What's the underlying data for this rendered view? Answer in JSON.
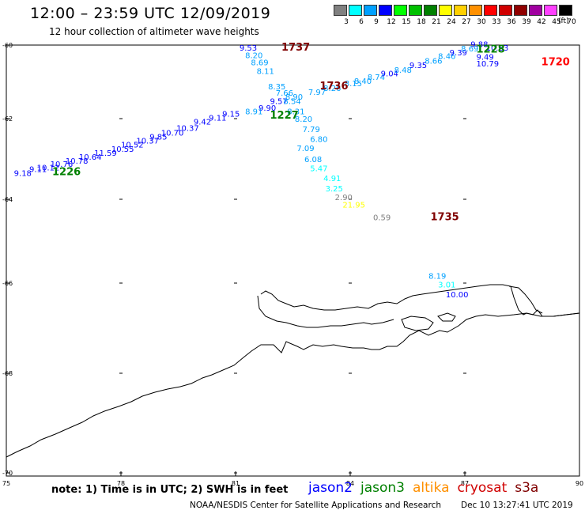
{
  "header": {
    "title": "12:00 – 23:59 UTC 12/09/2019",
    "subtitle": "12 hour collection of altimeter wave heights"
  },
  "legend": {
    "unit_label": "(ft)",
    "bins": [
      {
        "label": "3",
        "color": "#808080"
      },
      {
        "label": "6",
        "color": "#00ffff"
      },
      {
        "label": "9",
        "color": "#00a0ff"
      },
      {
        "label": "12",
        "color": "#0000ff"
      },
      {
        "label": "15",
        "color": "#00ff00"
      },
      {
        "label": "18",
        "color": "#00c000"
      },
      {
        "label": "21",
        "color": "#008000"
      },
      {
        "label": "24",
        "color": "#ffff00"
      },
      {
        "label": "27",
        "color": "#ffd000"
      },
      {
        "label": "30",
        "color": "#ff9000"
      },
      {
        "label": "33",
        "color": "#ff0000"
      },
      {
        "label": "36",
        "color": "#d00000"
      },
      {
        "label": "39",
        "color": "#900000"
      },
      {
        "label": "42",
        "color": "#a000a0"
      },
      {
        "label": "45",
        "color": "#ff40ff"
      },
      {
        "label": "70",
        "color": "#000000"
      }
    ]
  },
  "axes": {
    "lon_labels": [
      "75",
      "78",
      "81",
      "84",
      "87",
      "90"
    ],
    "lat_labels": [
      "-60",
      "-62",
      "-64",
      "-66",
      "-68",
      "-70"
    ]
  },
  "pass_times": [
    {
      "text": "1737",
      "color": "#800000",
      "lon": 82.2,
      "lat": -60.15
    },
    {
      "text": "1736",
      "color": "#800000",
      "lon": 83.2,
      "lat": -61.2
    },
    {
      "text": "1735",
      "color": "#800000",
      "lon": 86.1,
      "lat": -64.5
    },
    {
      "text": "1720",
      "color": "#ff0000",
      "lon": 89.0,
      "lat": -60.55
    },
    {
      "text": "1227",
      "color": "#008000",
      "lon": 81.9,
      "lat": -62.0
    },
    {
      "text": "1226",
      "color": "#008000",
      "lon": 76.2,
      "lat": -63.4
    },
    {
      "text": "1228",
      "color": "#008000",
      "lon": 87.3,
      "lat": -60.2
    }
  ],
  "wave_heights": [
    {
      "text": "9.53",
      "color": "#0000ff",
      "lon": 81.1,
      "lat": -60.15
    },
    {
      "text": "8.20",
      "color": "#00a0ff",
      "lon": 81.25,
      "lat": -60.35
    },
    {
      "text": "8.69",
      "color": "#00a0ff",
      "lon": 81.4,
      "lat": -60.55
    },
    {
      "text": "8.11",
      "color": "#00a0ff",
      "lon": 81.55,
      "lat": -60.78
    },
    {
      "text": "8.35",
      "color": "#00a0ff",
      "lon": 81.85,
      "lat": -61.2
    },
    {
      "text": "7.66",
      "color": "#00a0ff",
      "lon": 82.05,
      "lat": -61.38
    },
    {
      "text": "8.90",
      "color": "#00a0ff",
      "lon": 82.3,
      "lat": -61.48
    },
    {
      "text": "9.57",
      "color": "#0000ff",
      "lon": 81.9,
      "lat": -61.6
    },
    {
      "text": "8.54",
      "color": "#00a0ff",
      "lon": 82.25,
      "lat": -61.6
    },
    {
      "text": "9.90",
      "color": "#0000ff",
      "lon": 81.6,
      "lat": -61.78
    },
    {
      "text": "8.91",
      "color": "#00a0ff",
      "lon": 81.25,
      "lat": -61.88
    },
    {
      "text": "8.31",
      "color": "#00a0ff",
      "lon": 82.35,
      "lat": -61.88
    },
    {
      "text": "8.20",
      "color": "#00a0ff",
      "lon": 82.55,
      "lat": -62.08
    },
    {
      "text": "7.79",
      "color": "#00a0ff",
      "lon": 82.75,
      "lat": -62.33
    },
    {
      "text": "6.80",
      "color": "#00a0ff",
      "lon": 82.95,
      "lat": -62.58
    },
    {
      "text": "7.09",
      "color": "#00a0ff",
      "lon": 82.6,
      "lat": -62.8
    },
    {
      "text": "6.08",
      "color": "#00a0ff",
      "lon": 82.8,
      "lat": -63.08
    },
    {
      "text": "5.47",
      "color": "#00ffff",
      "lon": 82.95,
      "lat": -63.3
    },
    {
      "text": "4.91",
      "color": "#00ffff",
      "lon": 83.3,
      "lat": -63.55
    },
    {
      "text": "3.25",
      "color": "#00ffff",
      "lon": 83.35,
      "lat": -63.8
    },
    {
      "text": "2.90",
      "color": "#808080",
      "lon": 83.6,
      "lat": -64.02
    },
    {
      "text": "21.95",
      "color": "#ffff00",
      "lon": 83.8,
      "lat": -64.2
    },
    {
      "text": "0.59",
      "color": "#808080",
      "lon": 84.6,
      "lat": -64.5
    },
    {
      "text": "7.97",
      "color": "#00a0ff",
      "lon": 82.9,
      "lat": -61.35
    },
    {
      "text": "8.26",
      "color": "#00a0ff",
      "lon": 83.3,
      "lat": -61.25
    },
    {
      "text": "8.15",
      "color": "#00a0ff",
      "lon": 83.85,
      "lat": -61.12
    },
    {
      "text": "8.40",
      "color": "#00a0ff",
      "lon": 84.1,
      "lat": -61.05
    },
    {
      "text": "8.74",
      "color": "#00a0ff",
      "lon": 84.45,
      "lat": -60.95
    },
    {
      "text": "9.04",
      "color": "#0000ff",
      "lon": 84.8,
      "lat": -60.85
    },
    {
      "text": "8.48",
      "color": "#00a0ff",
      "lon": 85.15,
      "lat": -60.75
    },
    {
      "text": "9.35",
      "color": "#0000ff",
      "lon": 85.55,
      "lat": -60.62
    },
    {
      "text": "8.66",
      "color": "#00a0ff",
      "lon": 85.95,
      "lat": -60.5
    },
    {
      "text": "8.46",
      "color": "#00a0ff",
      "lon": 86.3,
      "lat": -60.38
    },
    {
      "text": "9.39",
      "color": "#0000ff",
      "lon": 86.6,
      "lat": -60.28
    },
    {
      "text": "8.69",
      "color": "#00a0ff",
      "lon": 86.9,
      "lat": -60.17
    },
    {
      "text": "9.88",
      "color": "#0000ff",
      "lon": 87.15,
      "lat": -60.05
    },
    {
      "text": "10.63",
      "color": "#0000ff",
      "lon": 87.55,
      "lat": -60.15
    },
    {
      "text": "9.49",
      "color": "#0000ff",
      "lon": 87.3,
      "lat": -60.4
    },
    {
      "text": "10.79",
      "color": "#0000ff",
      "lon": 87.3,
      "lat": -60.58
    },
    {
      "text": "9.15",
      "color": "#0000ff",
      "lon": 80.65,
      "lat": -61.95
    },
    {
      "text": "9.11",
      "color": "#0000ff",
      "lon": 80.3,
      "lat": -62.05
    },
    {
      "text": "9.42",
      "color": "#0000ff",
      "lon": 79.9,
      "lat": -62.15
    },
    {
      "text": "10.37",
      "color": "#0000ff",
      "lon": 79.45,
      "lat": -62.3
    },
    {
      "text": "10.70",
      "color": "#0000ff",
      "lon": 79.05,
      "lat": -62.42
    },
    {
      "text": "9.85",
      "color": "#0000ff",
      "lon": 78.75,
      "lat": -62.52
    },
    {
      "text": "10.37",
      "color": "#0000ff",
      "lon": 78.4,
      "lat": -62.62
    },
    {
      "text": "10.52",
      "color": "#0000ff",
      "lon": 78.0,
      "lat": -62.72
    },
    {
      "text": "10.55",
      "color": "#0000ff",
      "lon": 77.75,
      "lat": -62.82
    },
    {
      "text": "11.59",
      "color": "#0000ff",
      "lon": 77.3,
      "lat": -62.92
    },
    {
      "text": "10.64",
      "color": "#0000ff",
      "lon": 76.9,
      "lat": -63.02
    },
    {
      "text": "10.78",
      "color": "#0000ff",
      "lon": 76.55,
      "lat": -63.12
    },
    {
      "text": "10.76",
      "color": "#0000ff",
      "lon": 76.15,
      "lat": -63.2
    },
    {
      "text": "10.12",
      "color": "#0000ff",
      "lon": 75.8,
      "lat": -63.28
    },
    {
      "text": "9.11",
      "color": "#0000ff",
      "lon": 75.6,
      "lat": -63.32
    },
    {
      "text": "9.18",
      "color": "#0000ff",
      "lon": 75.2,
      "lat": -63.42
    },
    {
      "text": "8.19",
      "color": "#00a0ff",
      "lon": 86.05,
      "lat": -65.9
    },
    {
      "text": "3.01",
      "color": "#00ffff",
      "lon": 86.3,
      "lat": -66.1
    },
    {
      "text": "10.00",
      "color": "#0000ff",
      "lon": 86.5,
      "lat": -66.32
    }
  ],
  "footer": {
    "note": "note: 1) Time is in UTC; 2) SWH is in feet",
    "satellites": [
      {
        "name": "jason2",
        "color": "#0000ff"
      },
      {
        "name": "jason3",
        "color": "#008000"
      },
      {
        "name": "altika",
        "color": "#ff9000"
      },
      {
        "name": "cryosat",
        "color": "#d00000"
      },
      {
        "name": "s3a",
        "color": "#800000"
      }
    ],
    "credit": "NOAA/NESDIS Center for Satellite Applications and Research",
    "timestamp": "Dec 10 13:27:41 UTC 2019"
  }
}
